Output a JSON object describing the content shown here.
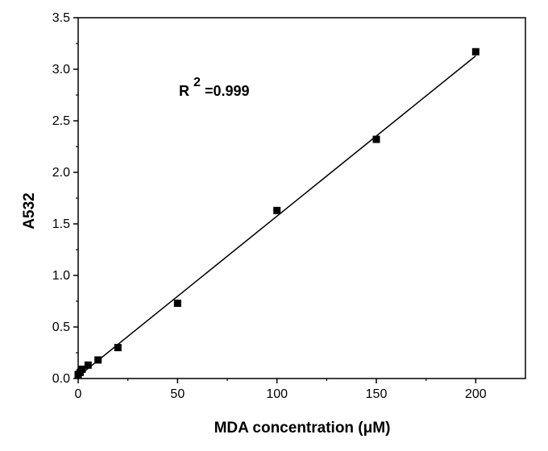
{
  "chart_data": {
    "type": "scatter",
    "xlabel": "MDA concentration (μM)",
    "ylabel": "A532",
    "xlim": [
      0,
      225
    ],
    "ylim": [
      0,
      3.5
    ],
    "xticks": [
      0,
      50,
      100,
      150,
      200
    ],
    "yticks": [
      0.0,
      0.5,
      1.0,
      1.5,
      2.0,
      2.5,
      3.0,
      3.5
    ],
    "xtick_labels": [
      "0",
      "50",
      "100",
      "150",
      "200"
    ],
    "ytick_labels": [
      "0.0",
      "0.5",
      "1.0",
      "1.5",
      "2.0",
      "2.5",
      "3.0",
      "3.5"
    ],
    "grid": false,
    "legend": "none",
    "marker": "square",
    "color": "#000000",
    "series": [
      {
        "points": [
          {
            "x": 0,
            "y": 0.04
          },
          {
            "x": 1,
            "y": 0.06
          },
          {
            "x": 2,
            "y": 0.09
          },
          {
            "x": 5,
            "y": 0.13
          },
          {
            "x": 10,
            "y": 0.18
          },
          {
            "x": 20,
            "y": 0.3
          },
          {
            "x": 50,
            "y": 0.73
          },
          {
            "x": 100,
            "y": 1.63
          },
          {
            "x": 150,
            "y": 2.32
          },
          {
            "x": 200,
            "y": 3.17
          }
        ]
      }
    ],
    "fit_line": {
      "type": "linear",
      "x": [
        0,
        200
      ],
      "y": [
        0.02,
        3.13
      ]
    },
    "annotation": {
      "prefix": "R",
      "superscript": "2",
      "suffix": "=0.999"
    }
  }
}
